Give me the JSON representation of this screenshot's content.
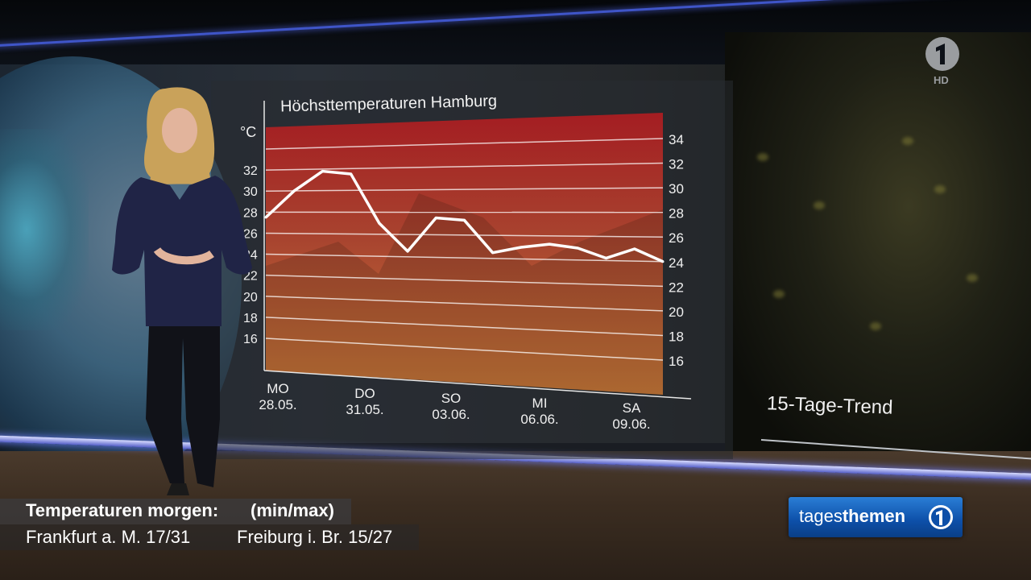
{
  "chart_data": {
    "type": "line",
    "title": "Höchsttemperaturen Hamburg",
    "unit": "°C",
    "ylim": [
      16,
      34
    ],
    "y_ticks": [
      16,
      18,
      20,
      22,
      24,
      26,
      28,
      30,
      32,
      34
    ],
    "x_day_labels": [
      "MO",
      "DO",
      "SO",
      "MI",
      "SA"
    ],
    "x_date_labels": [
      "28.05.",
      "31.05.",
      "03.06.",
      "06.06.",
      "09.06."
    ],
    "series": [
      {
        "values": [
          27.5,
          30,
          31.8,
          31.5,
          27,
          24.5,
          27.5,
          27.3,
          24.5,
          25,
          25.3,
          25,
          24.2,
          25,
          24
        ]
      }
    ],
    "grid": true,
    "colors": {
      "band_top": "#a41d22",
      "band_bottom": "#c97a3a",
      "line": "#ffffff"
    }
  },
  "trend_label": "15-Tage-Trend",
  "channel_logo": {
    "hd_label": "HD",
    "icon": "ard-one-icon"
  },
  "lower_third": {
    "title": "Temperaturen morgen:",
    "minmax": "(min/max)",
    "city1": "Frankfurt a. M. 17/31",
    "city2": "Freiburg i. Br. 15/27"
  },
  "badge": {
    "light": "tages",
    "bold": "themen",
    "icon": "ard-one-icon"
  }
}
